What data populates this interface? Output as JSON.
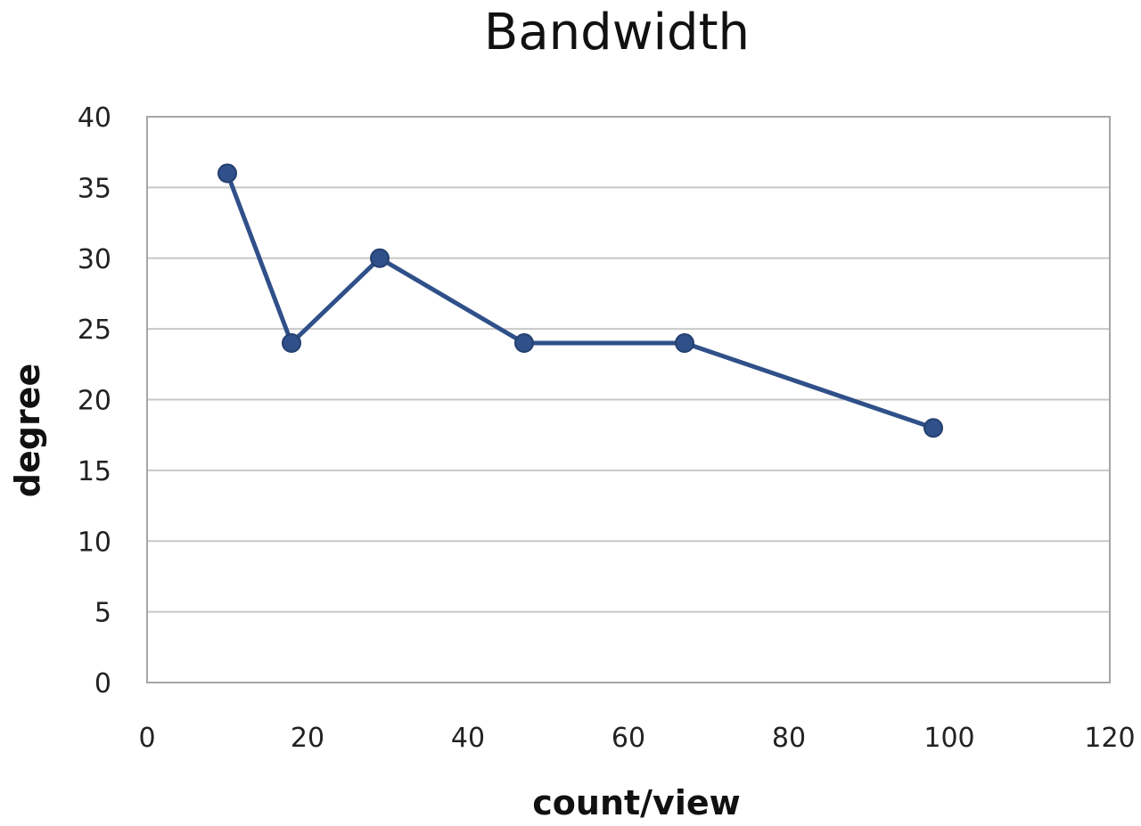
{
  "chart_data": {
    "type": "line",
    "title": "Bandwidth",
    "xlabel": "count/view",
    "ylabel": "degree",
    "xlim": [
      0,
      120
    ],
    "ylim": [
      0,
      40
    ],
    "x_ticks": [
      0,
      20,
      40,
      60,
      80,
      100,
      120
    ],
    "y_ticks": [
      0,
      5,
      10,
      15,
      20,
      25,
      30,
      35,
      40
    ],
    "grid": true,
    "series": [
      {
        "color": "#2f5089",
        "marker": "circle",
        "x": [
          10,
          18,
          29,
          47,
          67,
          98
        ],
        "y": [
          36,
          24,
          30,
          24,
          24,
          18
        ]
      }
    ]
  }
}
